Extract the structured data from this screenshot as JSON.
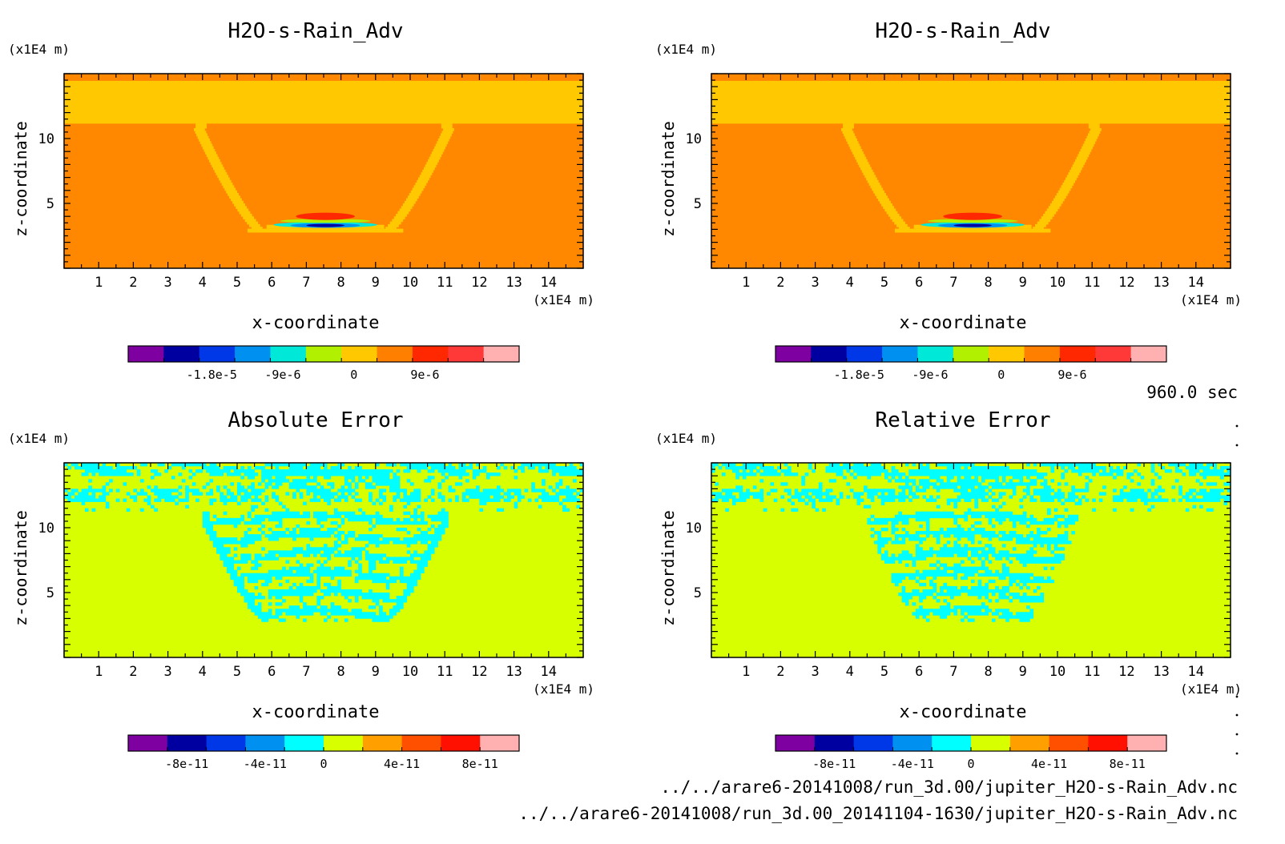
{
  "panels": [
    {
      "id": "top-left",
      "title": "H2O-s-Rain_Adv",
      "xlabel": "x-coordinate",
      "ylabel": "z-coordinate",
      "x_unit": "(x1E4 m)",
      "y_unit": "(x1E4 m)",
      "xticks": [
        1,
        2,
        3,
        4,
        5,
        6,
        7,
        8,
        9,
        10,
        11,
        12,
        13,
        14
      ],
      "yticks": [
        5,
        10
      ],
      "colorbar": {
        "colors": [
          "#7f00a0",
          "#0000a0",
          "#0038e8",
          "#0090f0",
          "#00e8d8",
          "#b0f000",
          "#ffc800",
          "#ff8000",
          "#ff2800",
          "#ff3838",
          "#ffb0b0"
        ],
        "labels": [
          "-1.8e-5",
          "-9e-6",
          "0",
          "9e-6"
        ]
      },
      "field": "state"
    },
    {
      "id": "top-right",
      "title": "H2O-s-Rain_Adv",
      "xlabel": "x-coordinate",
      "ylabel": "z-coordinate",
      "x_unit": "(x1E4 m)",
      "y_unit": "(x1E4 m)",
      "xticks": [
        1,
        2,
        3,
        4,
        5,
        6,
        7,
        8,
        9,
        10,
        11,
        12,
        13,
        14
      ],
      "yticks": [
        5,
        10
      ],
      "colorbar": {
        "colors": [
          "#7f00a0",
          "#0000a0",
          "#0038e8",
          "#0090f0",
          "#00e8d8",
          "#b0f000",
          "#ffc800",
          "#ff8000",
          "#ff2800",
          "#ff3838",
          "#ffb0b0"
        ],
        "labels": [
          "-1.8e-5",
          "-9e-6",
          "0",
          "9e-6"
        ]
      },
      "field": "state"
    },
    {
      "id": "bottom-left",
      "title": "Absolute Error",
      "xlabel": "x-coordinate",
      "ylabel": "z-coordinate",
      "x_unit": "(x1E4 m)",
      "y_unit": "(x1E4 m)",
      "xticks": [
        1,
        2,
        3,
        4,
        5,
        6,
        7,
        8,
        9,
        10,
        11,
        12,
        13,
        14
      ],
      "yticks": [
        5,
        10
      ],
      "colorbar": {
        "colors": [
          "#7f00a0",
          "#0000a0",
          "#0038e8",
          "#0090f0",
          "#00ffff",
          "#d8ff00",
          "#ffa000",
          "#ff5000",
          "#ff1000",
          "#ffb0b0"
        ],
        "labels": [
          "-8e-11",
          "-4e-11",
          "0",
          "4e-11",
          "8e-11"
        ]
      },
      "field": "abs-error"
    },
    {
      "id": "bottom-right",
      "title": "Relative Error",
      "xlabel": "x-coordinate",
      "ylabel": "z-coordinate",
      "x_unit": "(x1E4 m)",
      "y_unit": "(x1E4 m)",
      "xticks": [
        1,
        2,
        3,
        4,
        5,
        6,
        7,
        8,
        9,
        10,
        11,
        12,
        13,
        14
      ],
      "yticks": [
        5,
        10
      ],
      "colorbar": {
        "colors": [
          "#7f00a0",
          "#0000a0",
          "#0038e8",
          "#0090f0",
          "#00ffff",
          "#d8ff00",
          "#ffa000",
          "#ff5000",
          "#ff1000",
          "#ffb0b0"
        ],
        "labels": [
          "-8e-11",
          "-4e-11",
          "0",
          "4e-11",
          "8e-11"
        ]
      },
      "field": "rel-error"
    }
  ],
  "time_label": "960.0 sec",
  "file1": "../../arare6-20141008/run_3d.00/jupiter_H2O-s-Rain_Adv.nc",
  "file2": "../../arare6-20141008/run_3d.00_20141104-1630/jupiter_H2O-s-Rain_Adv.nc",
  "chart_data": [
    {
      "type": "heatmap",
      "title": "H2O-s-Rain_Adv",
      "xlabel": "x-coordinate",
      "ylabel": "z-coordinate",
      "xlim": [
        0,
        15
      ],
      "ylim": [
        0,
        15
      ],
      "color_levels": [
        "-1.8e-5",
        "-9e-6",
        "0",
        "9e-6"
      ]
    },
    {
      "type": "heatmap",
      "title": "H2O-s-Rain_Adv",
      "xlabel": "x-coordinate",
      "ylabel": "z-coordinate",
      "xlim": [
        0,
        15
      ],
      "ylim": [
        0,
        15
      ],
      "color_levels": [
        "-1.8e-5",
        "-9e-6",
        "0",
        "9e-6"
      ]
    },
    {
      "type": "heatmap",
      "title": "Absolute Error",
      "xlabel": "x-coordinate",
      "ylabel": "z-coordinate",
      "xlim": [
        0,
        15
      ],
      "ylim": [
        0,
        15
      ],
      "color_levels": [
        "-8e-11",
        "-4e-11",
        "0",
        "4e-11",
        "8e-11"
      ]
    },
    {
      "type": "heatmap",
      "title": "Relative Error",
      "xlabel": "x-coordinate",
      "ylabel": "z-coordinate",
      "xlim": [
        0,
        15
      ],
      "ylim": [
        0,
        15
      ],
      "color_levels": [
        "-8e-11",
        "-4e-11",
        "0",
        "4e-11",
        "8e-11"
      ]
    }
  ]
}
